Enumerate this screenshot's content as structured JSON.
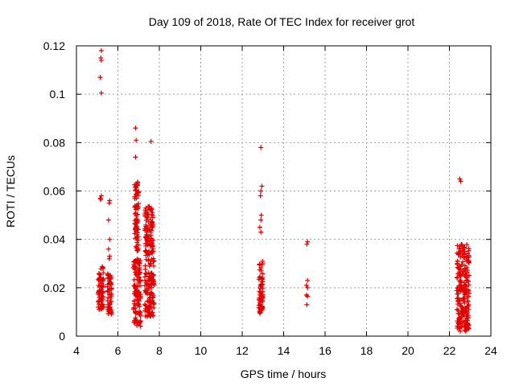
{
  "chart_data": {
    "type": "scatter",
    "title": "Day 109 of 2018, Rate Of TEC Index for receiver grot",
    "xlabel": "GPS time / hours",
    "ylabel": "ROTI / TECUs",
    "xlim": [
      4,
      24
    ],
    "ylim": [
      0,
      0.12
    ],
    "xticks": [
      4,
      6,
      8,
      10,
      12,
      14,
      16,
      18,
      20,
      22,
      24
    ],
    "yticks": [
      0,
      0.02,
      0.04,
      0.06,
      0.08,
      0.1,
      0.12
    ],
    "ytick_labels": [
      "0",
      "0.02",
      "0.04",
      "0.06",
      "0.08",
      "0.1",
      "0.12"
    ],
    "grid": true,
    "marker": "plus",
    "color": "#e00000",
    "clusters": [
      {
        "x": [
          5.05,
          5.3
        ],
        "y": [
          0.011,
          0.029
        ]
      },
      {
        "x": [
          5.5,
          5.7
        ],
        "y": [
          0.009,
          0.026
        ]
      },
      {
        "x": [
          6.75,
          7.1
        ],
        "y": [
          0.004,
          0.032
        ]
      },
      {
        "x": [
          6.8,
          7.0
        ],
        "y": [
          0.035,
          0.064
        ]
      },
      {
        "x": [
          7.3,
          7.75
        ],
        "y": [
          0.008,
          0.036
        ]
      },
      {
        "x": [
          7.3,
          7.7
        ],
        "y": [
          0.037,
          0.054
        ]
      },
      {
        "x": [
          12.8,
          13.0
        ],
        "y": [
          0.009,
          0.031
        ]
      },
      {
        "x": [
          22.35,
          22.95
        ],
        "y": [
          0.002,
          0.038
        ]
      }
    ],
    "points": [
      {
        "x": 5.2,
        "y": 0.118
      },
      {
        "x": 5.18,
        "y": 0.115
      },
      {
        "x": 5.2,
        "y": 0.114
      },
      {
        "x": 5.15,
        "y": 0.107
      },
      {
        "x": 5.2,
        "y": 0.1005
      },
      {
        "x": 5.15,
        "y": 0.057
      },
      {
        "x": 5.2,
        "y": 0.058
      },
      {
        "x": 5.18,
        "y": 0.0565
      },
      {
        "x": 5.6,
        "y": 0.056
      },
      {
        "x": 5.58,
        "y": 0.055
      },
      {
        "x": 5.55,
        "y": 0.048
      },
      {
        "x": 5.6,
        "y": 0.04
      },
      {
        "x": 5.55,
        "y": 0.036
      },
      {
        "x": 5.6,
        "y": 0.033
      },
      {
        "x": 5.58,
        "y": 0.032
      },
      {
        "x": 6.85,
        "y": 0.086
      },
      {
        "x": 6.88,
        "y": 0.081
      },
      {
        "x": 6.85,
        "y": 0.074
      },
      {
        "x": 7.6,
        "y": 0.0805
      },
      {
        "x": 12.9,
        "y": 0.078
      },
      {
        "x": 12.95,
        "y": 0.062
      },
      {
        "x": 12.9,
        "y": 0.06
      },
      {
        "x": 12.88,
        "y": 0.058
      },
      {
        "x": 12.92,
        "y": 0.05
      },
      {
        "x": 12.9,
        "y": 0.048
      },
      {
        "x": 12.85,
        "y": 0.045
      },
      {
        "x": 12.9,
        "y": 0.043
      },
      {
        "x": 15.15,
        "y": 0.039
      },
      {
        "x": 15.12,
        "y": 0.038
      },
      {
        "x": 15.15,
        "y": 0.023
      },
      {
        "x": 15.1,
        "y": 0.021
      },
      {
        "x": 15.15,
        "y": 0.02
      },
      {
        "x": 15.1,
        "y": 0.017
      },
      {
        "x": 15.15,
        "y": 0.0165
      },
      {
        "x": 15.12,
        "y": 0.013
      },
      {
        "x": 22.5,
        "y": 0.065
      },
      {
        "x": 22.55,
        "y": 0.064
      }
    ]
  }
}
